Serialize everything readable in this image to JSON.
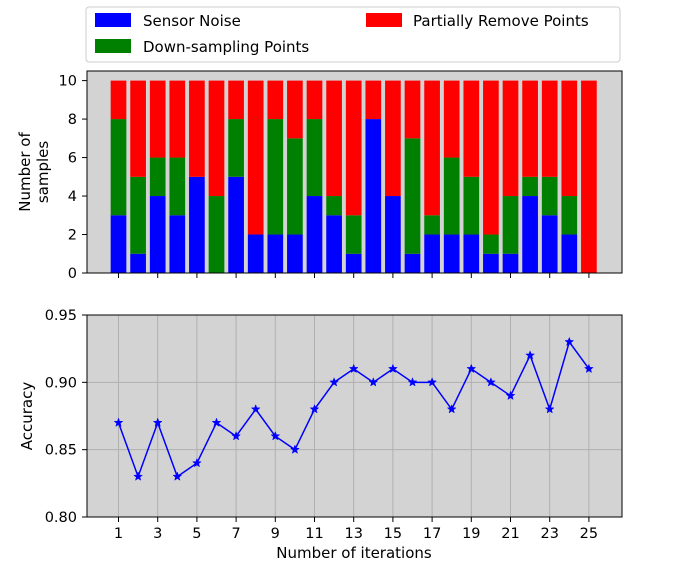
{
  "colors": {
    "noise": "#0000ff",
    "down": "#008000",
    "partial": "#ff0000",
    "line": "#0000ff",
    "axes_bg": "#d3d3d3",
    "grid": "#b0b0b0"
  },
  "chart_data": [
    {
      "type": "bar",
      "stacked": true,
      "ylabel": "Number of\nsamples",
      "ylim": [
        0,
        10
      ],
      "yticks": [
        0,
        2,
        4,
        6,
        8,
        10
      ],
      "x": [
        1,
        2,
        3,
        4,
        5,
        6,
        7,
        8,
        9,
        10,
        11,
        12,
        13,
        14,
        15,
        16,
        17,
        18,
        19,
        20,
        21,
        22,
        23,
        24,
        25
      ],
      "legend": {
        "placement": "top",
        "entries": [
          "Sensor Noise",
          "Down-sampling Points",
          "Partially Remove Points"
        ]
      },
      "series": [
        {
          "name": "Sensor Noise",
          "color": "#0000ff",
          "values": [
            3,
            1,
            4,
            3,
            5,
            0,
            5,
            2,
            2,
            2,
            4,
            3,
            1,
            8,
            4,
            1,
            2,
            2,
            2,
            1,
            1,
            4,
            3,
            2,
            0
          ]
        },
        {
          "name": "Down-sampling Points",
          "color": "#008000",
          "values": [
            5,
            4,
            2,
            3,
            0,
            4,
            3,
            0,
            6,
            5,
            4,
            1,
            2,
            0,
            0,
            6,
            1,
            4,
            3,
            1,
            3,
            1,
            2,
            2,
            0
          ]
        },
        {
          "name": "Partially Remove Points",
          "color": "#ff0000",
          "values": [
            2,
            5,
            4,
            4,
            5,
            6,
            2,
            8,
            2,
            3,
            2,
            6,
            7,
            2,
            6,
            3,
            7,
            4,
            5,
            8,
            6,
            5,
            5,
            6,
            10
          ]
        }
      ],
      "grid": false
    },
    {
      "type": "line",
      "marker": "star",
      "xlabel": "Number of iterations",
      "ylabel": "Accuracy",
      "ylim": [
        0.8,
        0.95
      ],
      "yticks": [
        "0.80",
        "0.85",
        "0.90",
        "0.95"
      ],
      "xticks": [
        1,
        3,
        5,
        7,
        9,
        11,
        13,
        15,
        17,
        19,
        21,
        23,
        25
      ],
      "x": [
        1,
        2,
        3,
        4,
        5,
        6,
        7,
        8,
        9,
        10,
        11,
        12,
        13,
        14,
        15,
        16,
        17,
        18,
        19,
        20,
        21,
        22,
        23,
        24,
        25
      ],
      "y": [
        0.87,
        0.83,
        0.87,
        0.83,
        0.84,
        0.87,
        0.86,
        0.88,
        0.86,
        0.85,
        0.88,
        0.9,
        0.91,
        0.9,
        0.91,
        0.9,
        0.9,
        0.88,
        0.91,
        0.9,
        0.89,
        0.92,
        0.88,
        0.93,
        0.91
      ],
      "grid": true
    }
  ]
}
